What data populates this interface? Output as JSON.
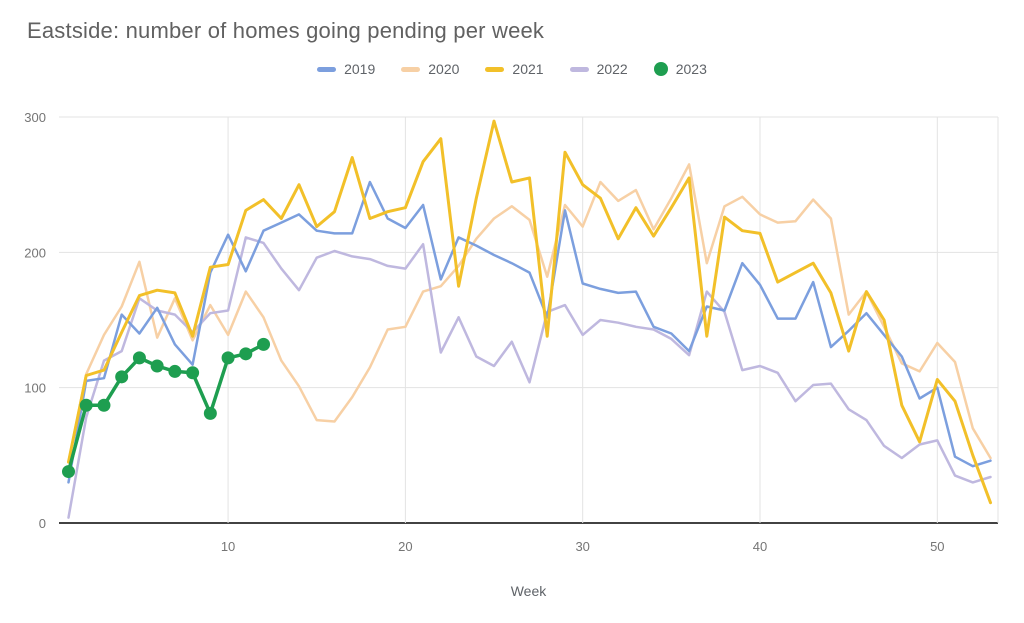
{
  "title": "Eastside: number of homes going pending per week",
  "x_axis": {
    "label": "Week",
    "ticks": [
      10,
      20,
      30,
      40,
      50
    ],
    "min": 1,
    "max": 53
  },
  "y_axis": {
    "ticks": [
      0,
      100,
      200,
      300
    ],
    "min": 0,
    "max": 300
  },
  "chart_data": {
    "type": "line",
    "title": "Eastside: number of homes going pending per week",
    "xlabel": "Week",
    "ylabel": "",
    "xlim": [
      1,
      53
    ],
    "ylim": [
      0,
      300
    ],
    "grid": true,
    "legend_position": "top",
    "x_unit": "week_number_starting_at_1",
    "series": [
      {
        "name": "2019",
        "color": "#7C9FDE",
        "marker": "dash",
        "values": [
          30,
          105,
          107,
          154,
          140,
          159,
          132,
          117,
          185,
          213,
          186,
          216,
          222,
          228,
          216,
          214,
          214,
          252,
          225,
          218,
          235,
          180,
          211,
          205,
          198,
          192,
          185,
          152,
          231,
          177,
          173,
          170,
          171,
          145,
          140,
          127,
          160,
          157,
          192,
          176,
          151,
          151,
          178,
          130,
          142,
          155,
          139,
          123,
          92,
          100,
          49,
          42,
          46
        ]
      },
      {
        "name": "2020",
        "color": "#F7D0A5",
        "marker": "dash",
        "values": [
          45,
          110,
          139,
          160,
          193,
          137,
          166,
          135,
          161,
          139,
          171,
          152,
          120,
          101,
          76,
          75,
          93,
          115,
          143,
          145,
          171,
          175,
          190,
          210,
          225,
          234,
          224,
          182,
          235,
          219,
          252,
          238,
          246,
          217,
          240,
          265,
          192,
          234,
          241,
          228,
          222,
          223,
          239,
          225,
          154,
          171,
          145,
          118,
          112,
          133,
          119,
          70,
          48
        ]
      },
      {
        "name": "2021",
        "color": "#F2C029",
        "marker": "dash",
        "values": [
          45,
          109,
          113,
          141,
          168,
          172,
          170,
          138,
          189,
          191,
          231,
          239,
          225,
          250,
          219,
          230,
          270,
          225,
          230,
          233,
          267,
          284,
          175,
          240,
          297,
          252,
          255,
          138,
          274,
          250,
          240,
          210,
          233,
          212,
          233,
          255,
          138,
          226,
          216,
          214,
          178,
          185,
          192,
          170,
          127,
          171,
          150,
          87,
          60,
          106,
          90,
          50,
          15
        ]
      },
      {
        "name": "2022",
        "color": "#BFB8DF",
        "marker": "dash",
        "values": [
          4,
          78,
          120,
          127,
          166,
          157,
          154,
          141,
          155,
          157,
          211,
          207,
          188,
          172,
          196,
          201,
          197,
          195,
          190,
          188,
          206,
          126,
          152,
          123,
          116,
          134,
          104,
          156,
          161,
          139,
          150,
          148,
          145,
          143,
          136,
          124,
          171,
          156,
          113,
          116,
          111,
          90,
          102,
          103,
          84,
          76,
          57,
          48,
          58,
          61,
          35,
          30,
          34
        ]
      },
      {
        "name": "2023",
        "color": "#1E9E50",
        "marker": "circle",
        "values": [
          38,
          87,
          87,
          108,
          122,
          116,
          112,
          111,
          81,
          122,
          125,
          132
        ]
      }
    ]
  },
  "colors": {
    "gridline": "#e3e3e3",
    "axis_line": "#424242",
    "tick_label": "#757575",
    "title_text": "#616161"
  }
}
